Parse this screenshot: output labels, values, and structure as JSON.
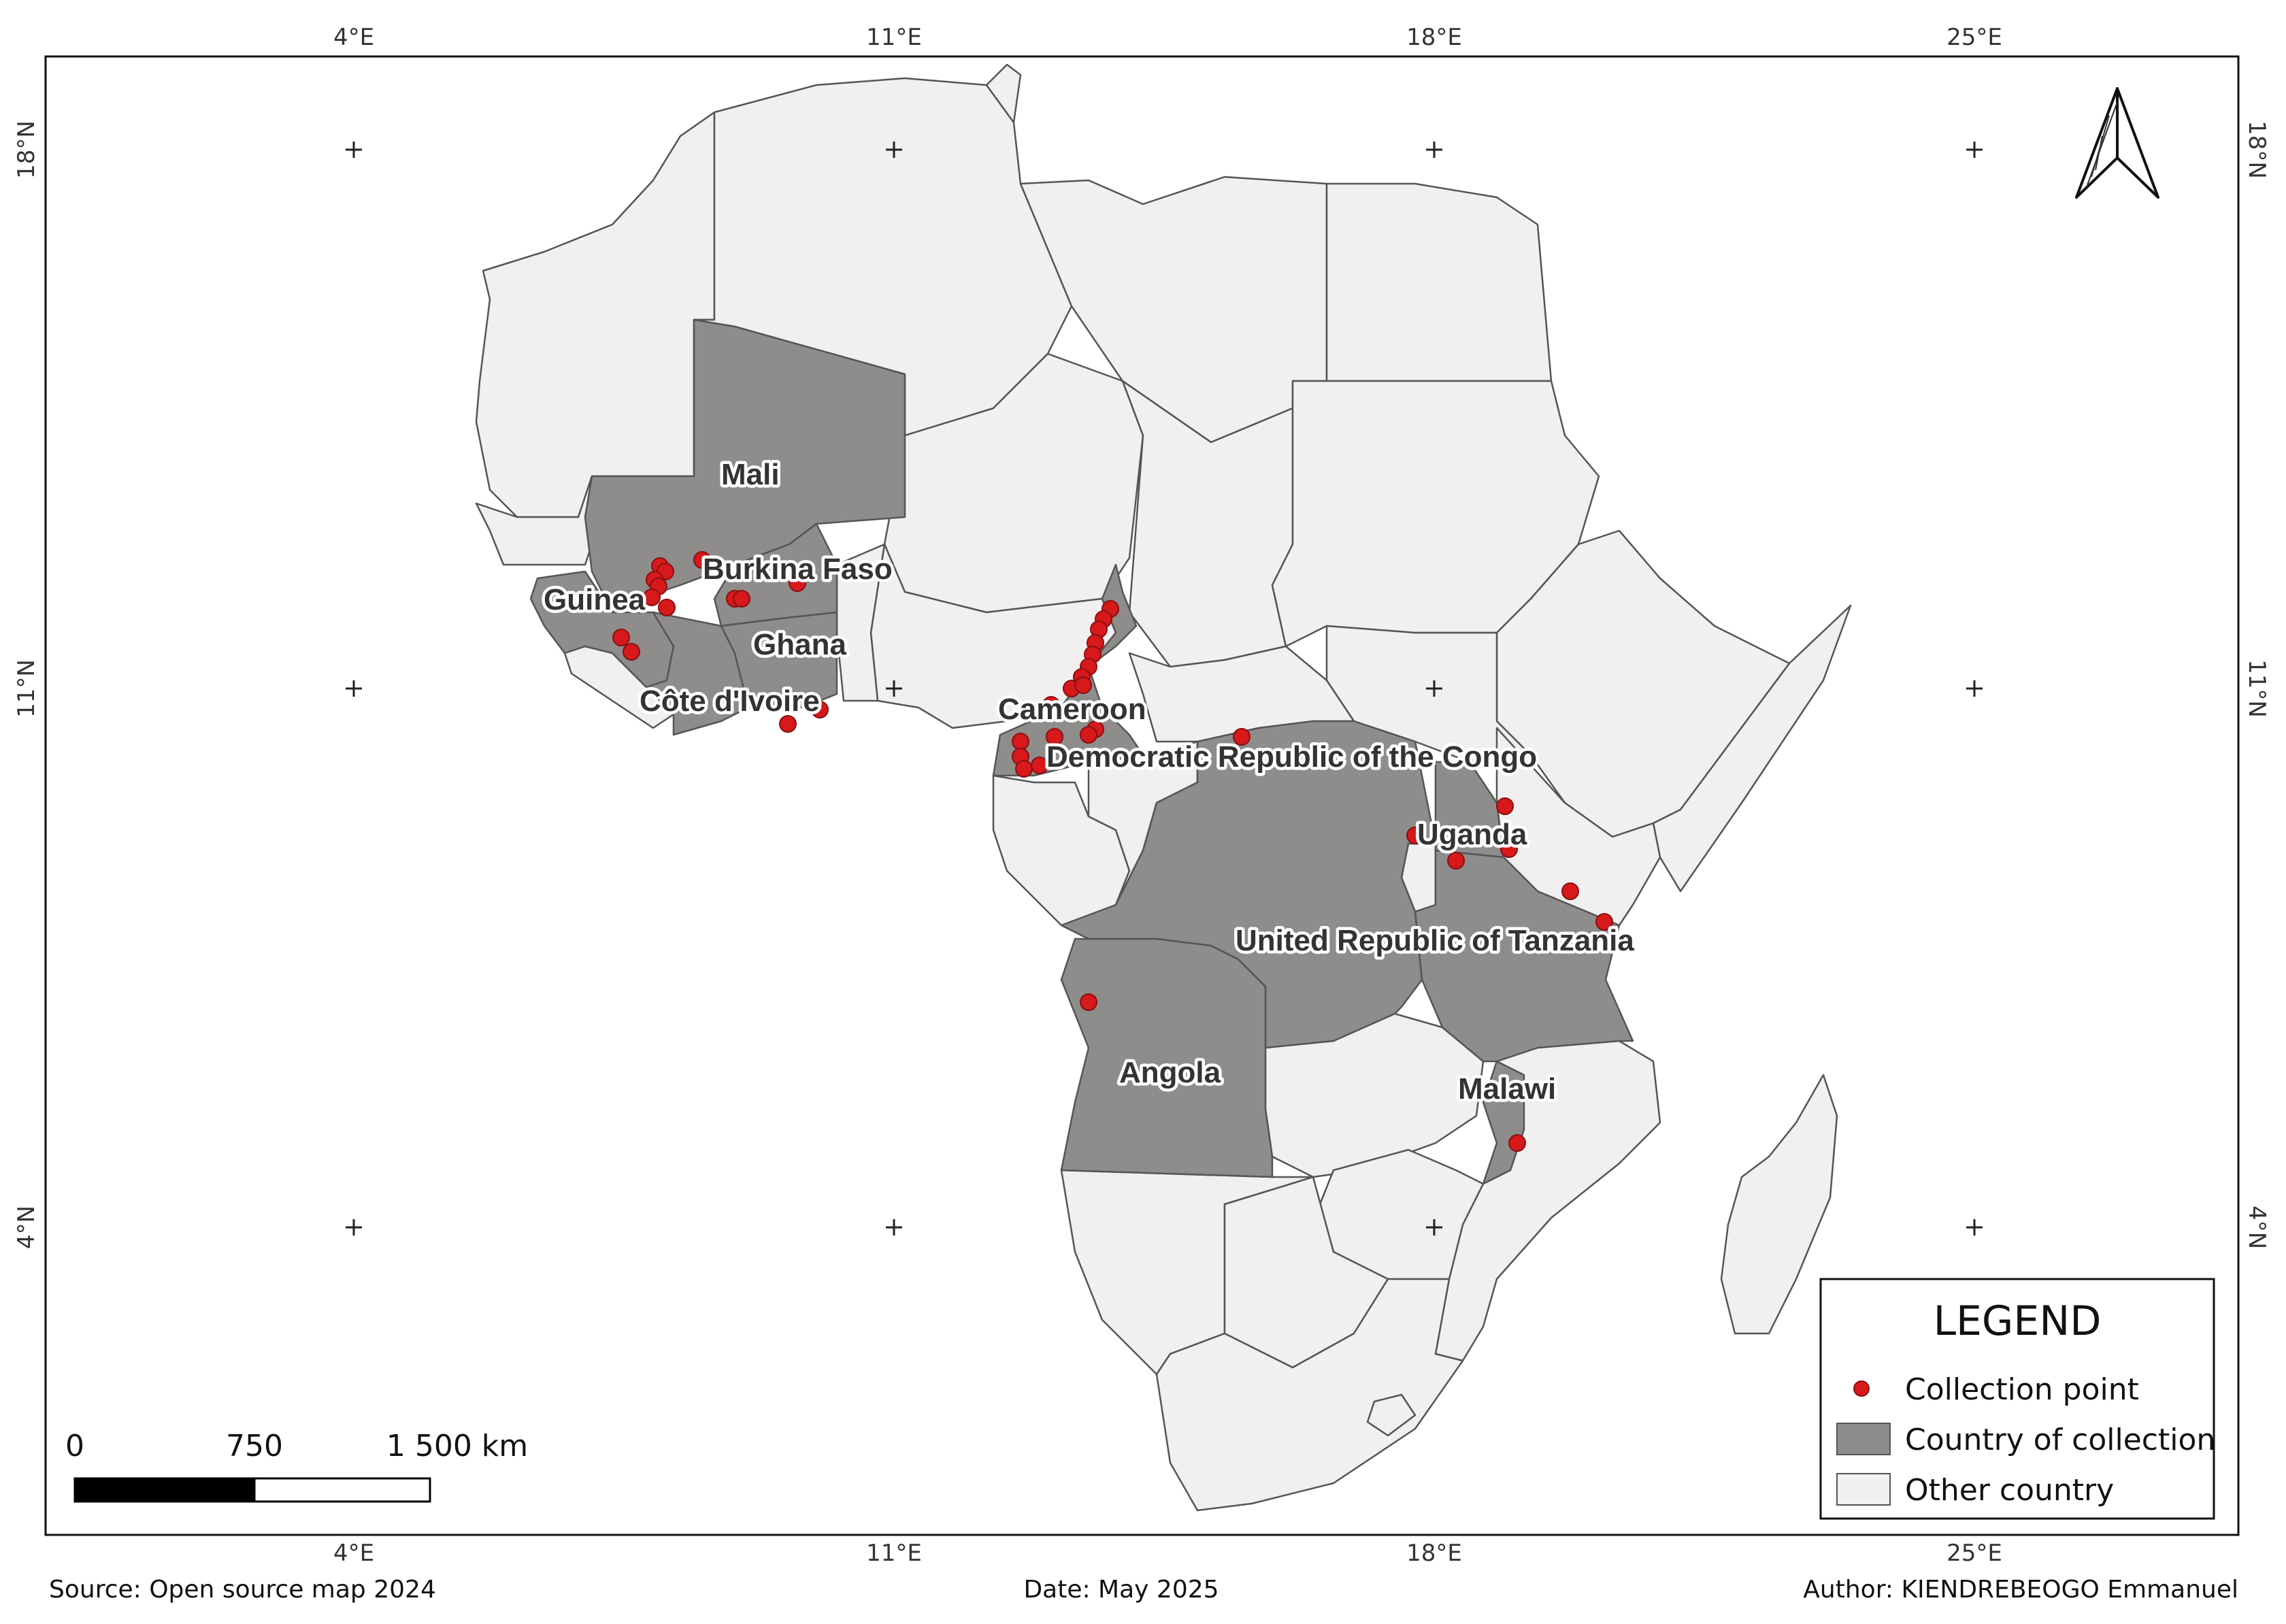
{
  "map": {
    "top_lon_labels": [
      "4°E",
      "11°E",
      "18°E",
      "25°E"
    ],
    "bottom_lon_labels": [
      "4°E",
      "11°E",
      "18°E",
      "25°E"
    ],
    "left_lat_labels": [
      "18°N",
      "11°N",
      "4°N"
    ],
    "right_lat_labels": [
      "18°N",
      "11°N",
      "4°N"
    ],
    "country_labels": {
      "mali": "Mali",
      "burkina_faso": "Burkina Faso",
      "guinea": "Guinea",
      "ghana": "Ghana",
      "cote_divoire": "Côte d'Ivoire",
      "cameroon": "Cameroon",
      "drc": "Democratic Republic of the Congo",
      "uganda": "Uganda",
      "tanzania": "United Republic of Tanzania",
      "angola": "Angola",
      "malawi": "Malawi"
    },
    "colors": {
      "collection_point": "#d7191c",
      "country_of_collection": "#8f8c8c",
      "other_country": "#f1eff0",
      "border": "#555555"
    }
  },
  "scale_bar": {
    "labels": [
      "0",
      "750",
      "1 500 km"
    ]
  },
  "legend": {
    "title": "LEGEND",
    "items": [
      {
        "label": "Collection point",
        "symbol": "red-dot"
      },
      {
        "label": "Country of collection",
        "symbol": "dark-gray-box"
      },
      {
        "label": "Other country",
        "symbol": "light-gray-box"
      }
    ]
  },
  "north_arrow": {
    "icon": "north-arrow-icon"
  },
  "footer": {
    "source": "Source: Open source map 2024",
    "date": "Date: May 2025",
    "author": "Author: KIENDREBEOGO Emmanuel"
  }
}
